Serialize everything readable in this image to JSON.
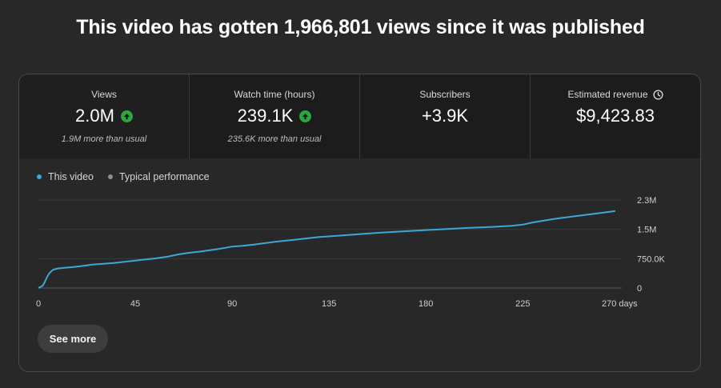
{
  "headline": "This video has gotten 1,966,801 views since it was published",
  "metrics": [
    {
      "label": "Views",
      "value": "2.0M",
      "sub": "1.9M more than usual",
      "trend": "up"
    },
    {
      "label": "Watch time (hours)",
      "value": "239.1K",
      "sub": "235.6K more than usual",
      "trend": "up"
    },
    {
      "label": "Subscribers",
      "value": "+3.9K",
      "sub": "",
      "trend": ""
    },
    {
      "label": "Estimated revenue",
      "value": "$9,423.83",
      "sub": "",
      "trend": "",
      "icon": "clock-icon"
    }
  ],
  "legend": {
    "this_video": "This video",
    "typical": "Typical performance"
  },
  "see_more_label": "See more",
  "colors": {
    "line": "#3ea6d8",
    "trend_up": "#2ba640",
    "typical_dot": "#909090"
  },
  "chart_data": {
    "type": "line",
    "x_ticks": [
      "0",
      "45",
      "90",
      "135",
      "180",
      "225",
      "270 days"
    ],
    "x_tick_values": [
      0,
      45,
      90,
      135,
      180,
      225,
      270
    ],
    "y_ticks": [
      "0",
      "750.0K",
      "1.5M",
      "2.3M"
    ],
    "y_tick_values": [
      0,
      750000,
      1500000,
      2250000
    ],
    "xlim": [
      0,
      271
    ],
    "ylim": [
      0,
      2250000
    ],
    "grid": true,
    "legend_position": "top-left",
    "series": [
      {
        "name": "This video",
        "x": [
          0,
          2,
          3,
          4,
          5,
          6,
          7,
          9,
          12,
          15,
          20,
          25,
          30,
          35,
          40,
          45,
          50,
          55,
          60,
          65,
          70,
          75,
          80,
          85,
          90,
          95,
          100,
          110,
          120,
          130,
          140,
          150,
          160,
          170,
          180,
          190,
          200,
          210,
          220,
          225,
          230,
          240,
          250,
          260,
          268
        ],
        "values": [
          0,
          60000,
          160000,
          280000,
          370000,
          430000,
          470000,
          500000,
          515000,
          530000,
          560000,
          600000,
          620000,
          640000,
          670000,
          700000,
          730000,
          760000,
          800000,
          860000,
          900000,
          930000,
          970000,
          1010000,
          1060000,
          1080000,
          1110000,
          1180000,
          1240000,
          1300000,
          1340000,
          1380000,
          1420000,
          1450000,
          1480000,
          1510000,
          1540000,
          1560000,
          1590000,
          1620000,
          1680000,
          1770000,
          1840000,
          1910000,
          1966801
        ]
      }
    ]
  }
}
